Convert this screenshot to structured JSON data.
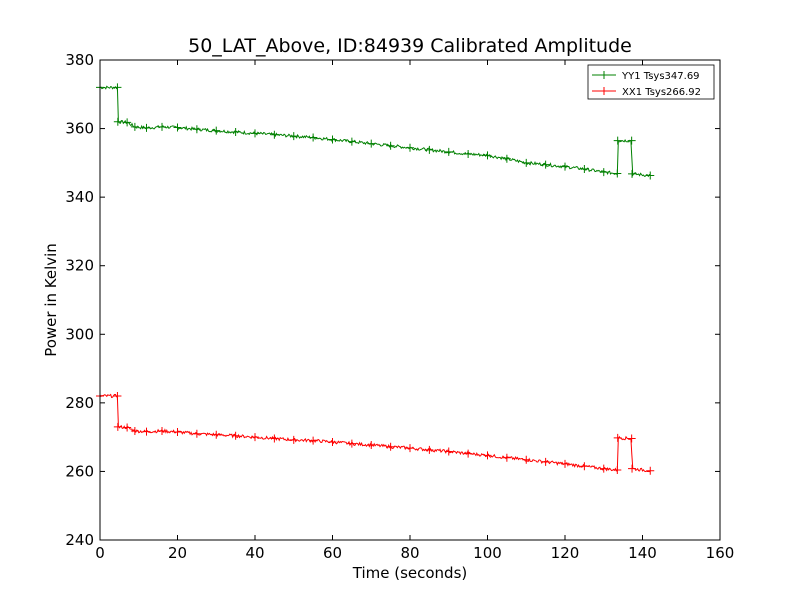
{
  "chart_data": {
    "type": "line",
    "title": "50_LAT_Above, ID:84939 Calibrated Amplitude",
    "xlabel": "Time (seconds)",
    "ylabel": "Power in Kelvin",
    "xlim": [
      0,
      160
    ],
    "ylim": [
      240,
      380
    ],
    "xticks": [
      0,
      20,
      40,
      60,
      80,
      100,
      120,
      140,
      160
    ],
    "yticks": [
      240,
      260,
      280,
      300,
      320,
      340,
      360,
      380
    ],
    "grid": false,
    "legend_position": "top-right",
    "series": [
      {
        "name": "YY1 Tsys347.69",
        "color": "#008000",
        "x": [
          0,
          4.5,
          4.6,
          7,
          9,
          12,
          16,
          20,
          25,
          30,
          35,
          40,
          45,
          50,
          55,
          60,
          65,
          70,
          75,
          80,
          85,
          90,
          95,
          100,
          105,
          110,
          115,
          120,
          125,
          130,
          133.5,
          133.6,
          137.2,
          137.3,
          142
        ],
        "y": [
          372,
          372,
          362,
          361.8,
          360.5,
          360.2,
          360.5,
          360.3,
          359.8,
          359.4,
          359,
          358.6,
          358.2,
          357.8,
          357.4,
          356.8,
          356.2,
          355.6,
          355,
          354.4,
          353.8,
          353.2,
          352.6,
          352.2,
          351.2,
          350,
          349.5,
          348.9,
          348.2,
          347.3,
          346.9,
          356.5,
          356.5,
          346.8,
          346.3
        ]
      },
      {
        "name": "XX1 Tsys266.92",
        "color": "#ff0000",
        "x": [
          0,
          4.5,
          4.6,
          7,
          9,
          12,
          16,
          20,
          25,
          30,
          35,
          40,
          45,
          50,
          55,
          60,
          65,
          70,
          75,
          80,
          85,
          90,
          95,
          100,
          105,
          110,
          115,
          120,
          125,
          130,
          133.5,
          133.6,
          137.2,
          137.3,
          142
        ],
        "y": [
          282,
          282,
          273,
          272.8,
          271.8,
          271.6,
          271.8,
          271.5,
          271,
          270.7,
          270.4,
          270,
          269.6,
          269.2,
          269,
          268.6,
          268.1,
          267.7,
          267.2,
          266.8,
          266.3,
          265.8,
          265.2,
          264.7,
          264,
          263.4,
          262.8,
          262.2,
          261.5,
          260.8,
          260.4,
          269.8,
          269.6,
          260.8,
          260.2
        ]
      }
    ]
  }
}
